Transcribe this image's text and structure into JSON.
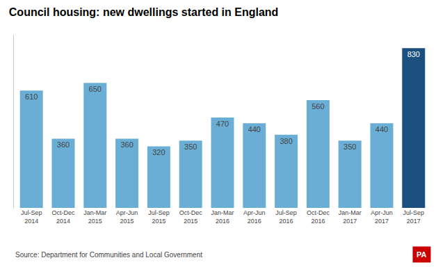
{
  "chart_data": {
    "type": "bar",
    "title": "Council housing: new dwellings started in England",
    "categories": [
      "Jul-Sep\n2014",
      "Oct-Dec\n2014",
      "Jan-Mar\n2015",
      "Apr-Jun\n2015",
      "Jul-Sep\n2015",
      "Oct-Dec\n2015",
      "Jan-Mar\n2016",
      "Apr-Jun\n2016",
      "Jul-Sep\n2016",
      "Oct-Dec\n2016",
      "Jan-Mar\n2017",
      "Apr-Jun\n2017",
      "Jul-Sep\n2017"
    ],
    "values": [
      610,
      360,
      650,
      360,
      320,
      350,
      470,
      440,
      380,
      560,
      350,
      440,
      830
    ],
    "colors": [
      "#6aaed6",
      "#6aaed6",
      "#6aaed6",
      "#6aaed6",
      "#6aaed6",
      "#6aaed6",
      "#6aaed6",
      "#6aaed6",
      "#6aaed6",
      "#6aaed6",
      "#6aaed6",
      "#6aaed6",
      "#1a4f80"
    ],
    "ylim": [
      0,
      900
    ],
    "data_labels": true,
    "tick_labels": "x",
    "grid": false,
    "annotations": [
      "Source: Department for Communities and Local Government",
      "PA"
    ]
  }
}
